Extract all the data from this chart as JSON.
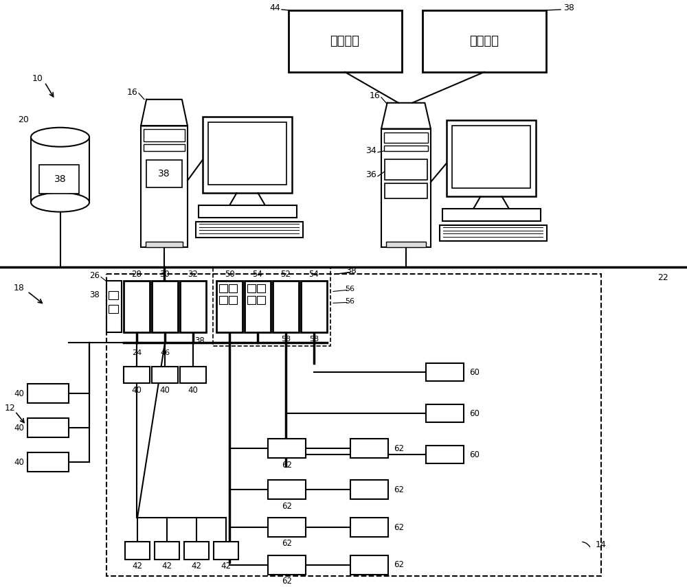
{
  "bg": "#ffffff",
  "lc": "#000000",
  "display_app": "显示应用",
  "diag_app": "诊断应用",
  "figsize": [
    10.0,
    8.55
  ],
  "dpi": 100
}
